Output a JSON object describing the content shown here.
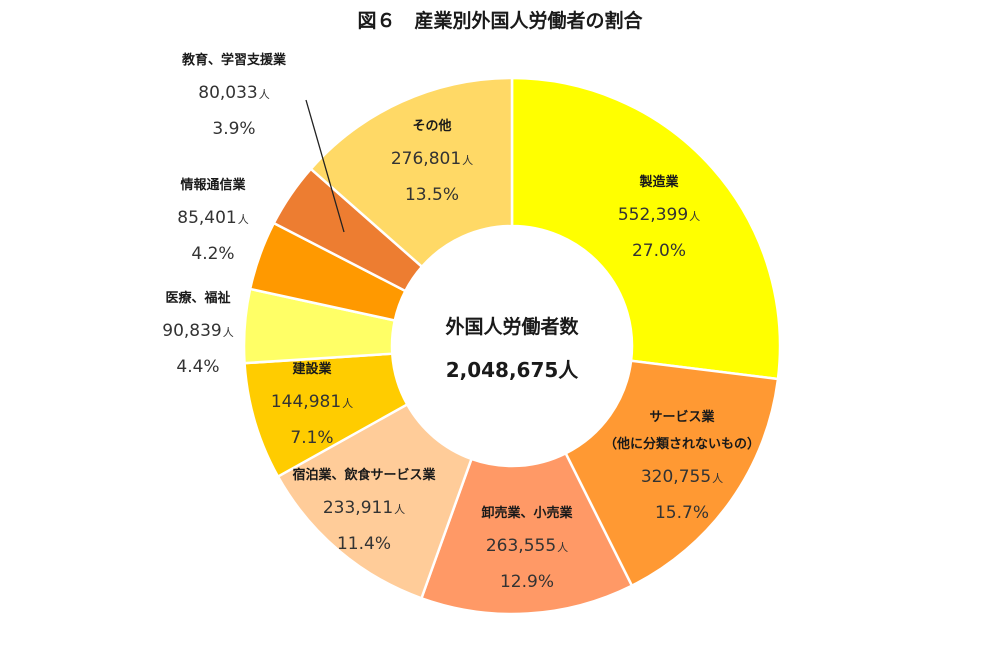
{
  "chart_data": {
    "type": "pie",
    "title": "図６　産業別外国人労働者の割合",
    "center_label": "外国人労働者数",
    "center_value": "2,048,675人",
    "unit": "人",
    "slices": [
      {
        "label": "製造業",
        "value_text": "552,399",
        "value": 552399,
        "percent": "27.0%",
        "color": "#FFFF00"
      },
      {
        "label": "サービス業",
        "label2": "（他に分類されないもの）",
        "value_text": "320,755",
        "value": 320755,
        "percent": "15.7%",
        "color": "#FF9933"
      },
      {
        "label": "卸売業、小売業",
        "value_text": "263,555",
        "value": 263555,
        "percent": "12.9%",
        "color": "#FF9966"
      },
      {
        "label": "宿泊業、飲食サービス業",
        "value_text": "233,911",
        "value": 233911,
        "percent": "11.4%",
        "color": "#FFCC99"
      },
      {
        "label": "建設業",
        "value_text": "144,981",
        "value": 144981,
        "percent": "7.1%",
        "color": "#FFCC00"
      },
      {
        "label": "医療、福祉",
        "value_text": "90,839",
        "value": 90839,
        "percent": "4.4%",
        "color": "#FFFF66"
      },
      {
        "label": "情報通信業",
        "value_text": "85,401",
        "value": 85401,
        "percent": "4.2%",
        "color": "#FF9900"
      },
      {
        "label": "教育、学習支援業",
        "value_text": "80,033",
        "value": 80033,
        "percent": "3.9%",
        "color": "#ED7D31"
      },
      {
        "label": "その他",
        "value_text": "276,801",
        "value": 276801,
        "percent": "13.5%",
        "color": "#FFD966"
      }
    ]
  }
}
